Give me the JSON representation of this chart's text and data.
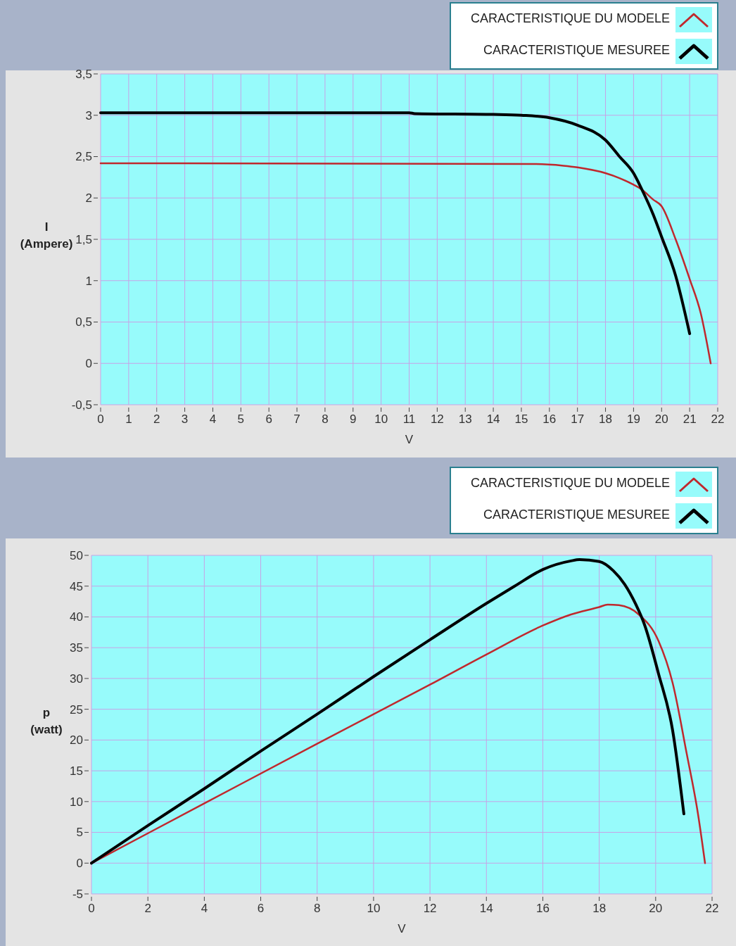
{
  "chart_data": [
    {
      "type": "line",
      "xlabel": "V",
      "ylabel": "I\n(Ampere)",
      "xlim": [
        0,
        22
      ],
      "ylim": [
        -0.5,
        3.5
      ],
      "xticks": [
        0,
        1,
        2,
        3,
        4,
        5,
        6,
        7,
        8,
        9,
        10,
        11,
        12,
        13,
        14,
        15,
        16,
        17,
        18,
        19,
        20,
        21,
        22
      ],
      "yticks": [
        {
          "value": -0.5,
          "label": "-0,5"
        },
        0,
        {
          "value": 0.5,
          "label": "0,5"
        },
        1,
        {
          "value": 1.5,
          "label": "1,5"
        },
        2,
        {
          "value": 2.5,
          "label": "2,5"
        },
        3,
        {
          "value": 3.5,
          "label": "3,5"
        }
      ],
      "grid": true,
      "legend": "top right",
      "line_style": "solid",
      "series": [
        {
          "name": "CARACTERISTIQUE DU MODELE",
          "color": "#c0282d",
          "x": [
            0,
            15.5,
            16.5,
            17,
            18,
            18.5,
            19,
            19.3,
            19.7,
            20,
            20.5,
            21,
            21.4,
            21.75
          ],
          "values": [
            2.42,
            2.41,
            2.39,
            2.37,
            2.3,
            2.24,
            2.16,
            2.1,
            1.98,
            1.9,
            1.5,
            1.02,
            0.6,
            0
          ]
        },
        {
          "name": "CARACTERISTIQUE MESUREE",
          "color": "#000000",
          "x": [
            0,
            5,
            11,
            11.2,
            14,
            15,
            16,
            17,
            18,
            18.5,
            19,
            19.3,
            19.7,
            20,
            20.5,
            21
          ],
          "values": [
            3.03,
            3.03,
            3.03,
            3.02,
            3.01,
            3.0,
            2.97,
            2.88,
            2.7,
            2.5,
            2.3,
            2.1,
            1.8,
            1.53,
            1.06,
            0.36
          ]
        }
      ]
    },
    {
      "type": "line",
      "xlabel": "V",
      "ylabel": "p\n(watt)",
      "xlim": [
        0,
        22
      ],
      "ylim": [
        -5,
        50
      ],
      "xticks": [
        0,
        2,
        4,
        6,
        8,
        10,
        12,
        14,
        16,
        18,
        20,
        22
      ],
      "yticks": [
        -5,
        0,
        5,
        10,
        15,
        20,
        25,
        30,
        35,
        40,
        45,
        50
      ],
      "grid": true,
      "legend": "top right",
      "line_style": "solid",
      "series": [
        {
          "name": "CARACTERISTIQUE DU MODELE",
          "color": "#c0282d",
          "x": [
            0,
            4,
            8,
            12,
            14,
            16,
            17,
            18,
            18.3,
            18.7,
            19.4,
            20.1,
            20.6,
            21.1,
            21.5,
            21.75
          ],
          "values": [
            0,
            9.7,
            19.4,
            29,
            33.9,
            38.6,
            40.4,
            41.6,
            42,
            41.9,
            40.4,
            36.1,
            29.3,
            17.8,
            8,
            0
          ]
        },
        {
          "name": "CARACTERISTIQUE MESUREE",
          "color": "#000000",
          "x": [
            0,
            2,
            4,
            6,
            8,
            10,
            12,
            14,
            15,
            16,
            17,
            17.3,
            18,
            18.5,
            18.9,
            19.3,
            19.6,
            20.1,
            20.6,
            21
          ],
          "values": [
            0,
            6.1,
            12.1,
            18.2,
            24.2,
            30.3,
            36.3,
            42.2,
            45,
            47.7,
            49.1,
            49.3,
            49,
            47.5,
            45.3,
            42,
            38.8,
            30.8,
            21.6,
            8
          ]
        }
      ]
    }
  ]
}
